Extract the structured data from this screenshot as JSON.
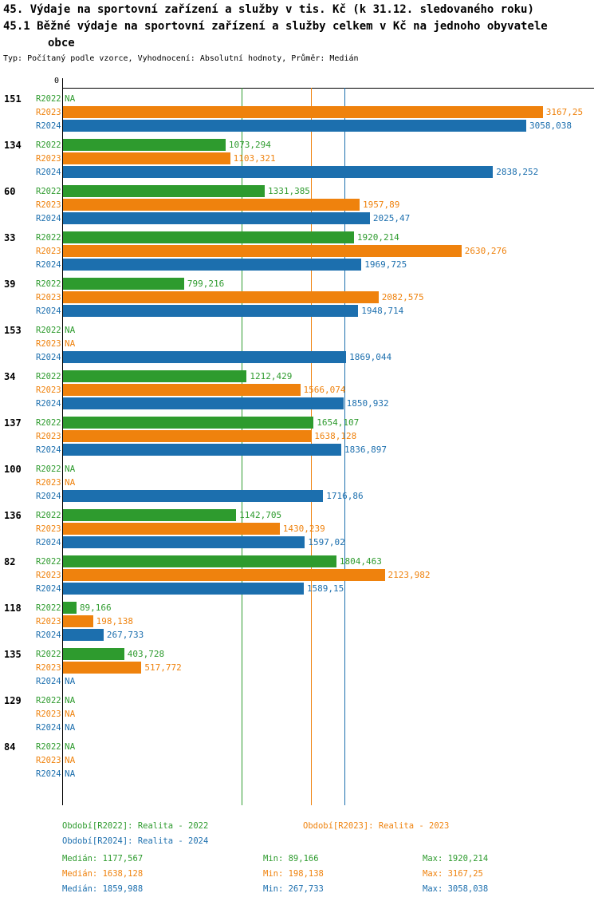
{
  "header": {
    "title_line1": "45. Výdaje na sportovní zařízení a služby v tis. Kč (k 31.12. sledovaného roku)",
    "title_line2": "45.1 Běžné výdaje na sportovní zařízení a služby celkem v Kč na jednoho obyvatele",
    "title_line3": "obce",
    "meta": "Typ: Počítaný podle vzorce, Vyhodnocení: Absolutní hodnoty, Průměr: Medián"
  },
  "colors": {
    "R2022": "#2e9b2e",
    "R2023": "#ef820d",
    "R2024": "#1c6fae",
    "axis": "#000000"
  },
  "chart_data": {
    "type": "bar",
    "orientation": "horizontal",
    "title": "45.1 Běžné výdaje na sportovní zařízení a služby celkem v Kč na jednoho obyvatele obce",
    "x_axis": {
      "zero_label": "0",
      "min": 0,
      "max_visible_value": 3167.25
    },
    "series_labels": [
      "R2022",
      "R2023",
      "R2024"
    ],
    "na_text": "NA",
    "grid": false,
    "legend_position": "bottom",
    "groups": [
      {
        "id": "151",
        "values": [
          null,
          3167.25,
          3058.038
        ],
        "labels": [
          "NA",
          "3167,25",
          "3058,038"
        ]
      },
      {
        "id": "134",
        "values": [
          1073.294,
          1103.321,
          2838.252
        ],
        "labels": [
          "1073,294",
          "1103,321",
          "2838,252"
        ]
      },
      {
        "id": "60",
        "values": [
          1331.385,
          1957.89,
          2025.47
        ],
        "labels": [
          "1331,385",
          "1957,89",
          "2025,47"
        ]
      },
      {
        "id": "33",
        "values": [
          1920.214,
          2630.276,
          1969.725
        ],
        "labels": [
          "1920,214",
          "2630,276",
          "1969,725"
        ]
      },
      {
        "id": "39",
        "values": [
          799.216,
          2082.575,
          1948.714
        ],
        "labels": [
          "799,216",
          "2082,575",
          "1948,714"
        ]
      },
      {
        "id": "153",
        "values": [
          null,
          null,
          1869.044
        ],
        "labels": [
          "NA",
          "NA",
          "1869,044"
        ]
      },
      {
        "id": "34",
        "values": [
          1212.429,
          1566.074,
          1850.932
        ],
        "labels": [
          "1212,429",
          "1566,074",
          "1850,932"
        ]
      },
      {
        "id": "137",
        "values": [
          1654.107,
          1638.128,
          1836.897
        ],
        "labels": [
          "1654,107",
          "1638,128",
          "1836,897"
        ]
      },
      {
        "id": "100",
        "values": [
          null,
          null,
          1716.86
        ],
        "labels": [
          "NA",
          "NA",
          "1716,86"
        ]
      },
      {
        "id": "136",
        "values": [
          1142.705,
          1430.239,
          1597.02
        ],
        "labels": [
          "1142,705",
          "1430,239",
          "1597,02"
        ]
      },
      {
        "id": "82",
        "values": [
          1804.463,
          2123.982,
          1589.15
        ],
        "labels": [
          "1804,463",
          "2123,982",
          "1589,15"
        ]
      },
      {
        "id": "118",
        "values": [
          89.166,
          198.138,
          267.733
        ],
        "labels": [
          "89,166",
          "198,138",
          "267,733"
        ]
      },
      {
        "id": "135",
        "values": [
          403.728,
          517.772,
          null
        ],
        "labels": [
          "403,728",
          "517,772",
          "NA"
        ]
      },
      {
        "id": "129",
        "values": [
          null,
          null,
          null
        ],
        "labels": [
          "NA",
          "NA",
          "NA"
        ]
      },
      {
        "id": "84",
        "values": [
          null,
          null,
          null
        ],
        "labels": [
          "NA",
          "NA",
          "NA"
        ]
      }
    ],
    "median_lines": [
      {
        "series": "R2022",
        "value": 1177.567
      },
      {
        "series": "R2023",
        "value": 1638.128
      },
      {
        "series": "R2024",
        "value": 1859.988
      }
    ]
  },
  "legend": {
    "items": [
      {
        "series": "R2022",
        "label": "Období[R2022]: Realita - 2022"
      },
      {
        "series": "R2023",
        "label": "Období[R2023]: Realita - 2023"
      },
      {
        "series": "R2024",
        "label": "Období[R2024]: Realita - 2024"
      }
    ],
    "stats": [
      {
        "series": "R2022",
        "median": "Medián: 1177,567",
        "min": "Min: 89,166",
        "max": "Max: 1920,214"
      },
      {
        "series": "R2023",
        "median": "Medián: 1638,128",
        "min": "Min: 198,138",
        "max": "Max: 3167,25"
      },
      {
        "series": "R2024",
        "median": "Medián: 1859,988",
        "min": "Min: 267,733",
        "max": "Max: 3058,038"
      }
    ]
  }
}
